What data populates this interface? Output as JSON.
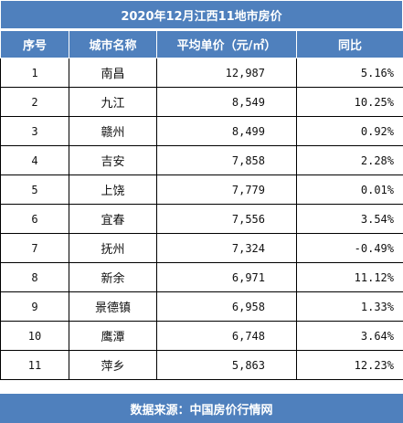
{
  "title": "2020年12月江西11地市房价",
  "headers": [
    "序号",
    "城市名称",
    "平均单价（元/㎡）",
    "同比"
  ],
  "rows": [
    {
      "no": "1",
      "city": "南昌",
      "price": "12,987",
      "yoy": "5.16%"
    },
    {
      "no": "2",
      "city": "九江",
      "price": "8,549",
      "yoy": "10.25%"
    },
    {
      "no": "3",
      "city": "赣州",
      "price": "8,499",
      "yoy": "0.92%"
    },
    {
      "no": "4",
      "city": "吉安",
      "price": "7,858",
      "yoy": "2.28%"
    },
    {
      "no": "5",
      "city": "上饶",
      "price": "7,779",
      "yoy": "0.01%"
    },
    {
      "no": "6",
      "city": "宜春",
      "price": "7,556",
      "yoy": "3.54%"
    },
    {
      "no": "7",
      "city": "抚州",
      "price": "7,324",
      "yoy": "-0.49%"
    },
    {
      "no": "8",
      "city": "新余",
      "price": "6,971",
      "yoy": "11.12%"
    },
    {
      "no": "9",
      "city": "景德镇",
      "price": "6,958",
      "yoy": "1.33%"
    },
    {
      "no": "10",
      "city": "鹰潭",
      "price": "6,748",
      "yoy": "3.64%"
    },
    {
      "no": "11",
      "city": "萍乡",
      "price": "5,863",
      "yoy": "12.23%"
    }
  ],
  "footer": "数据来源：中国房价行情网",
  "colors": {
    "header_bg": "#4f80bd",
    "header_text": "#ffffff",
    "border": "#000000"
  }
}
